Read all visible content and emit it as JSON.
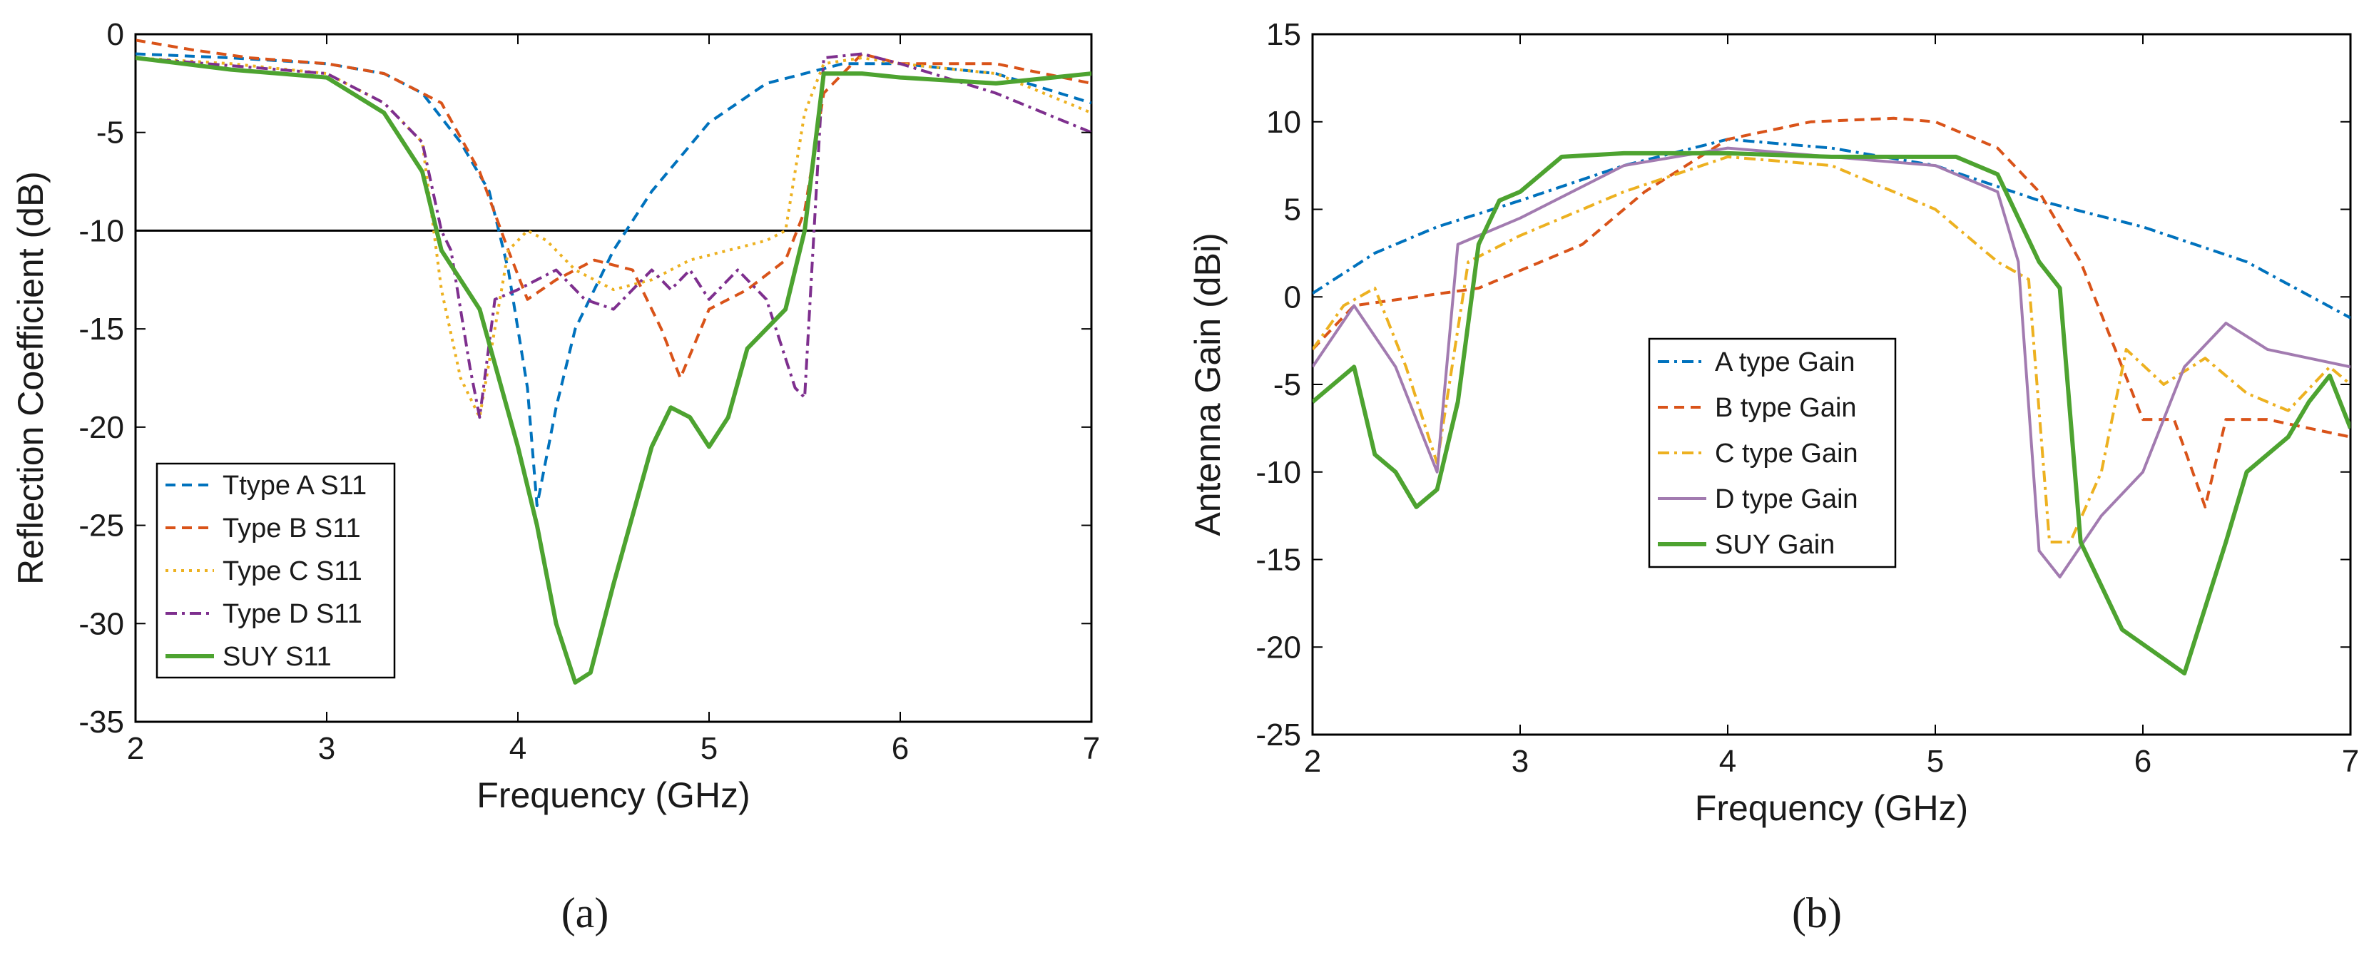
{
  "chart_data": [
    {
      "id": "a",
      "panel_label": "(a)",
      "type": "line",
      "xlabel": "Frequency (GHz)",
      "ylabel": "Reflection Coefficient (dB)",
      "xlim": [
        2,
        7
      ],
      "ylim": [
        -35,
        0
      ],
      "xticks": [
        2,
        3,
        4,
        5,
        6,
        7
      ],
      "yticks": [
        0,
        -5,
        -10,
        -15,
        -20,
        -25,
        -30,
        -35
      ],
      "grid": false,
      "legend_position": "bottom-left",
      "reference_line": {
        "y": -10,
        "color": "#000000"
      },
      "series": [
        {
          "name": "Ttype A S11",
          "color": "#0072BD",
          "dash": "dashed",
          "x": [
            2,
            2.5,
            3,
            3.3,
            3.5,
            3.7,
            3.85,
            3.95,
            4.05,
            4.1,
            4.2,
            4.3,
            4.5,
            4.7,
            5,
            5.3,
            5.5,
            5.7,
            6,
            6.5,
            7
          ],
          "y": [
            -1,
            -1.2,
            -1.5,
            -2,
            -3,
            -5.5,
            -8,
            -12,
            -18,
            -24,
            -19,
            -15,
            -11,
            -8,
            -4.5,
            -2.5,
            -2,
            -1.5,
            -1.5,
            -2,
            -3.5
          ]
        },
        {
          "name": "Type  B S11",
          "color": "#D95319",
          "dash": "dashed",
          "x": [
            2,
            2.3,
            2.6,
            3,
            3.3,
            3.6,
            3.8,
            3.95,
            4.05,
            4.2,
            4.4,
            4.6,
            4.75,
            4.85,
            5,
            5.2,
            5.4,
            5.5,
            5.6,
            5.8,
            6,
            6.5,
            7
          ],
          "y": [
            -0.3,
            -0.8,
            -1.2,
            -1.5,
            -2,
            -3.5,
            -7,
            -11,
            -13.5,
            -12.5,
            -11.5,
            -12,
            -15,
            -17.5,
            -14,
            -13,
            -11.5,
            -9,
            -3,
            -1,
            -1.5,
            -1.5,
            -2.5
          ]
        },
        {
          "name": "Type  C S11",
          "color": "#EDB120",
          "dash": "dotted",
          "x": [
            2,
            2.5,
            3,
            3.3,
            3.5,
            3.6,
            3.7,
            3.8,
            3.95,
            4.05,
            4.15,
            4.3,
            4.5,
            4.7,
            4.9,
            5.1,
            5.3,
            5.4,
            5.5,
            5.6,
            5.8,
            6,
            6.5,
            7
          ],
          "y": [
            -1.2,
            -1.5,
            -2,
            -3.5,
            -5.5,
            -13,
            -17.5,
            -19.5,
            -11,
            -10,
            -10.5,
            -12,
            -13,
            -12.5,
            -11.5,
            -11,
            -10.5,
            -10,
            -4,
            -1.5,
            -1.2,
            -1.5,
            -2,
            -4
          ]
        },
        {
          "name": "Type  D S11",
          "color": "#7E2F8E",
          "dash": "dashdot",
          "x": [
            2,
            2.5,
            3,
            3.3,
            3.5,
            3.6,
            3.65,
            3.75,
            3.8,
            3.88,
            4,
            4.2,
            4.35,
            4.5,
            4.6,
            4.7,
            4.8,
            4.9,
            5,
            5.15,
            5.3,
            5.45,
            5.5,
            5.6,
            5.8,
            6,
            6.5,
            7
          ],
          "y": [
            -1.2,
            -1.6,
            -2,
            -3.5,
            -5.5,
            -10,
            -11,
            -17,
            -19.5,
            -13.5,
            -13,
            -12,
            -13.5,
            -14,
            -13,
            -12,
            -13,
            -12,
            -13.5,
            -12,
            -13.5,
            -18,
            -18.5,
            -1.2,
            -1,
            -1.5,
            -3,
            -5
          ]
        },
        {
          "name": "SUY  S11",
          "color": "#4DA330",
          "dash": "solid",
          "x": [
            2,
            2.5,
            3,
            3.3,
            3.5,
            3.6,
            3.8,
            4,
            4.1,
            4.2,
            4.3,
            4.38,
            4.5,
            4.7,
            4.8,
            4.9,
            5,
            5.1,
            5.2,
            5.4,
            5.5,
            5.6,
            5.8,
            6,
            6.5,
            7
          ],
          "y": [
            -1.2,
            -1.8,
            -2.2,
            -4,
            -7,
            -11,
            -14,
            -21,
            -25,
            -30,
            -33,
            -32.5,
            -28,
            -21,
            -19,
            -19.5,
            -21,
            -19.5,
            -16,
            -14,
            -10,
            -2,
            -2,
            -2.2,
            -2.5,
            -2
          ]
        }
      ]
    },
    {
      "id": "b",
      "panel_label": "(b)",
      "type": "line",
      "xlabel": "Frequency (GHz)",
      "ylabel": "Antenna Gain (dBi)",
      "xlim": [
        2,
        7
      ],
      "ylim": [
        -25,
        15
      ],
      "xticks": [
        2,
        3,
        4,
        5,
        6,
        7
      ],
      "yticks": [
        15,
        10,
        5,
        0,
        -5,
        -10,
        -15,
        -20,
        -25
      ],
      "grid": false,
      "legend_position": "center",
      "series": [
        {
          "name": "A type Gain",
          "color": "#0072BD",
          "dash": "dashdot",
          "x": [
            2,
            2.3,
            2.6,
            3,
            3.5,
            4,
            4.5,
            5,
            5.5,
            6,
            6.5,
            7
          ],
          "y": [
            0.2,
            2.5,
            4,
            5.5,
            7.5,
            9,
            8.5,
            7.5,
            5.5,
            4,
            2,
            -1.2
          ]
        },
        {
          "name": "B type Gain",
          "color": "#D95319",
          "dash": "dashed",
          "x": [
            2,
            2.2,
            2.5,
            2.8,
            3,
            3.3,
            3.6,
            4,
            4.4,
            4.8,
            5,
            5.3,
            5.5,
            5.7,
            5.9,
            6,
            6.15,
            6.3,
            6.4,
            6.6,
            6.8,
            7
          ],
          "y": [
            -3,
            -0.5,
            0,
            0.5,
            1.5,
            3,
            6,
            9,
            10,
            10.2,
            10,
            8.5,
            6,
            2,
            -4,
            -7,
            -7,
            -12,
            -7,
            -7,
            -7.5,
            -8
          ]
        },
        {
          "name": "C type Gain",
          "color": "#EDB120",
          "dash": "dashdot",
          "x": [
            2,
            2.15,
            2.3,
            2.45,
            2.6,
            2.75,
            3,
            3.5,
            4,
            4.5,
            5,
            5.3,
            5.45,
            5.55,
            5.65,
            5.8,
            5.92,
            6.1,
            6.3,
            6.5,
            6.7,
            6.9,
            7
          ],
          "y": [
            -3,
            -0.5,
            0.5,
            -4,
            -9.5,
            2,
            3.5,
            6,
            8,
            7.5,
            5,
            2,
            1,
            -14,
            -14,
            -10,
            -3,
            -5,
            -3.5,
            -5.5,
            -6.5,
            -4,
            -5
          ]
        },
        {
          "name": "D type Gain",
          "color": "#A27BB0",
          "dash": "solid",
          "x": [
            2,
            2.2,
            2.4,
            2.6,
            2.7,
            3,
            3.5,
            4,
            4.5,
            5,
            5.3,
            5.4,
            5.5,
            5.6,
            5.8,
            6,
            6.2,
            6.4,
            6.6,
            6.8,
            7
          ],
          "y": [
            -4,
            -0.5,
            -4,
            -10,
            3,
            4.5,
            7.5,
            8.5,
            8,
            7.5,
            6,
            2,
            -14.5,
            -16,
            -12.5,
            -10,
            -4,
            -1.5,
            -3,
            -3.5,
            -4
          ]
        },
        {
          "name": "SUY Gain",
          "color": "#4DA330",
          "dash": "solid",
          "x": [
            2,
            2.2,
            2.3,
            2.4,
            2.5,
            2.6,
            2.7,
            2.8,
            2.9,
            3,
            3.2,
            3.5,
            4,
            4.5,
            5,
            5.1,
            5.3,
            5.5,
            5.6,
            5.7,
            5.9,
            6.2,
            6.4,
            6.5,
            6.7,
            6.8,
            6.9,
            7
          ],
          "y": [
            -6,
            -4,
            -9,
            -10,
            -12,
            -11,
            -6,
            3,
            5.5,
            6,
            8,
            8.2,
            8.2,
            8,
            8,
            8,
            7,
            2,
            0.5,
            -14,
            -19,
            -21.5,
            -14,
            -10,
            -8,
            -6,
            -4.5,
            -7.5
          ]
        }
      ]
    }
  ]
}
